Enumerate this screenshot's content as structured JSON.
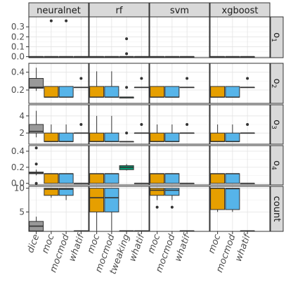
{
  "chart_data": {
    "type": "box",
    "grid": true,
    "legend": "none",
    "models": [
      "neuralnet",
      "rf",
      "svm",
      "xgboost"
    ],
    "methods": {
      "neuralnet": [
        "dice",
        "moc",
        "mocmod",
        "whatif"
      ],
      "rf": [
        "moc",
        "mocmod",
        "tweaking",
        "whatif"
      ],
      "svm": [
        "moc",
        "mocmod",
        "whatif"
      ],
      "xgboost": [
        "moc",
        "mocmod",
        "whatif"
      ]
    },
    "method_colors": {
      "dice": "#999999",
      "moc": "#E69F00",
      "mocmod": "#56B4E9",
      "tweaking": "#009E73",
      "whatif": "#F0E442"
    },
    "rows": [
      {
        "key": "o1",
        "label": "o",
        "sub": "1",
        "ylim": [
          -0.01,
          0.4
        ],
        "ticks": [
          0.0,
          0.1,
          0.2,
          0.3
        ],
        "tick_labels": [
          "0.0",
          "0.1",
          "0.2",
          "0.3"
        ]
      },
      {
        "key": "o2",
        "label": "o",
        "sub": "2",
        "ylim": [
          0.05,
          0.5
        ],
        "ticks": [
          0.2,
          0.4
        ],
        "tick_labels": [
          "0.2",
          "0.4"
        ]
      },
      {
        "key": "o3",
        "label": "o",
        "sub": "3",
        "ylim": [
          0.7,
          5.3
        ],
        "ticks": [
          2,
          4
        ],
        "tick_labels": [
          "2",
          "4"
        ]
      },
      {
        "key": "o4",
        "label": "o",
        "sub": "4",
        "ylim": [
          -0.02,
          0.47
        ],
        "ticks": [
          0.0,
          0.2,
          0.4
        ],
        "tick_labels": [
          "0.0",
          "0.2",
          "0.4"
        ]
      },
      {
        "key": "count",
        "label": "count",
        "sub": "",
        "ylim": [
          0.9,
          10.4
        ],
        "ticks": [
          5,
          10
        ],
        "tick_labels": [
          "5",
          "10"
        ]
      }
    ],
    "boxes": {
      "neuralnet": {
        "o1": {
          "dice": {
            "min": 0.0,
            "q1": 0.0,
            "median": 0.0,
            "q3": 0.0,
            "max": 0.0,
            "outliers": []
          },
          "moc": {
            "min": 0.0,
            "q1": 0.0,
            "median": 0.0,
            "q3": 0.0,
            "max": 0.0,
            "outliers": [
              0.36
            ]
          },
          "mocmod": {
            "min": 0.0,
            "q1": 0.0,
            "median": 0.0,
            "q3": 0.0,
            "max": 0.0,
            "outliers": [
              0.36
            ]
          },
          "whatif": {
            "min": 0.0,
            "q1": 0.0,
            "median": 0.0,
            "q3": 0.0,
            "max": 0.0,
            "outliers": []
          }
        },
        "o2": {
          "dice": {
            "min": 0.19,
            "q1": 0.22,
            "median": 0.23,
            "q3": 0.33,
            "max": 0.45,
            "outliers": []
          },
          "moc": {
            "min": 0.12,
            "q1": 0.12,
            "median": 0.12,
            "q3": 0.24,
            "max": 0.24,
            "outliers": []
          },
          "mocmod": {
            "min": 0.12,
            "q1": 0.12,
            "median": 0.12,
            "q3": 0.24,
            "max": 0.24,
            "outliers": []
          },
          "whatif": {
            "min": 0.23,
            "q1": 0.23,
            "median": 0.23,
            "q3": 0.23,
            "max": 0.23,
            "outliers": [
              0.33
            ]
          }
        },
        "o3": {
          "dice": {
            "min": 1.5,
            "q1": 2.0,
            "median": 2.2,
            "q3": 3.0,
            "max": 4.6,
            "outliers": []
          },
          "moc": {
            "min": 1.0,
            "q1": 1.0,
            "median": 1.0,
            "q3": 2.0,
            "max": 3.0,
            "outliers": []
          },
          "mocmod": {
            "min": 1.0,
            "q1": 1.0,
            "median": 1.0,
            "q3": 2.0,
            "max": 3.0,
            "outliers": []
          },
          "whatif": {
            "min": 2.0,
            "q1": 2.0,
            "median": 2.0,
            "q3": 2.0,
            "max": 2.0,
            "outliers": [
              3.0
            ]
          }
        },
        "o4": {
          "dice": {
            "min": 0.1,
            "q1": 0.12,
            "median": 0.13,
            "q3": 0.14,
            "max": 0.17,
            "outliers": [
              0.44,
              0.24,
              0.0
            ]
          },
          "moc": {
            "min": 0.0,
            "q1": 0.0,
            "median": 0.12,
            "q3": 0.12,
            "max": 0.12,
            "outliers": []
          },
          "mocmod": {
            "min": 0.0,
            "q1": 0.0,
            "median": 0.12,
            "q3": 0.12,
            "max": 0.12,
            "outliers": []
          },
          "whatif": {
            "min": 0.0,
            "q1": 0.0,
            "median": 0.0,
            "q3": 0.0,
            "max": 0.0,
            "outliers": []
          }
        },
        "count": {
          "dice": {
            "min": 1.0,
            "q1": 1.0,
            "median": 2.0,
            "q3": 3.0,
            "max": 4.0,
            "outliers": []
          },
          "moc": {
            "min": 8.0,
            "q1": 8.5,
            "median": 9.8,
            "q3": 10.0,
            "max": 10.0,
            "outliers": []
          },
          "mocmod": {
            "min": 7.5,
            "q1": 8.5,
            "median": 9.8,
            "q3": 10.0,
            "max": 10.0,
            "outliers": []
          },
          "whatif": {
            "min": 1.0,
            "q1": 1.0,
            "median": 1.0,
            "q3": 1.0,
            "max": 1.0,
            "outliers": []
          }
        }
      },
      "rf": {
        "o1": {
          "moc": {
            "min": 0.0,
            "q1": 0.0,
            "median": 0.0,
            "q3": 0.0,
            "max": 0.0,
            "outliers": []
          },
          "mocmod": {
            "min": 0.0,
            "q1": 0.0,
            "median": 0.0,
            "q3": 0.0,
            "max": 0.0,
            "outliers": []
          },
          "tweaking": {
            "min": 0.0,
            "q1": 0.0,
            "median": 0.0,
            "q3": 0.0,
            "max": 0.0,
            "outliers": [
              0.18,
              0.03
            ]
          },
          "whatif": {
            "min": 0.0,
            "q1": 0.0,
            "median": 0.0,
            "q3": 0.0,
            "max": 0.0,
            "outliers": []
          }
        },
        "o2": {
          "moc": {
            "min": 0.12,
            "q1": 0.12,
            "median": 0.12,
            "q3": 0.24,
            "max": 0.41,
            "outliers": []
          },
          "mocmod": {
            "min": 0.12,
            "q1": 0.12,
            "median": 0.12,
            "q3": 0.24,
            "max": 0.41,
            "outliers": []
          },
          "tweaking": {
            "min": 0.11,
            "q1": 0.11,
            "median": 0.12,
            "q3": 0.12,
            "max": 0.12,
            "outliers": [
              0.23
            ]
          },
          "whatif": {
            "min": 0.23,
            "q1": 0.23,
            "median": 0.23,
            "q3": 0.23,
            "max": 0.23,
            "outliers": [
              0.33
            ]
          }
        },
        "o3": {
          "moc": {
            "min": 1.0,
            "q1": 1.0,
            "median": 1.0,
            "q3": 2.0,
            "max": 4.0,
            "outliers": []
          },
          "mocmod": {
            "min": 1.0,
            "q1": 1.0,
            "median": 1.0,
            "q3": 2.0,
            "max": 4.0,
            "outliers": []
          },
          "tweaking": {
            "min": 1.0,
            "q1": 1.0,
            "median": 1.0,
            "q3": 1.0,
            "max": 1.0,
            "outliers": [
              2.0
            ]
          },
          "whatif": {
            "min": 2.0,
            "q1": 2.0,
            "median": 2.0,
            "q3": 2.0,
            "max": 2.0,
            "outliers": [
              3.0
            ]
          }
        },
        "o4": {
          "moc": {
            "min": 0.0,
            "q1": 0.0,
            "median": 0.12,
            "q3": 0.12,
            "max": 0.12,
            "outliers": []
          },
          "mocmod": {
            "min": 0.0,
            "q1": 0.0,
            "median": 0.12,
            "q3": 0.12,
            "max": 0.12,
            "outliers": []
          },
          "tweaking": {
            "min": 0.16,
            "q1": 0.17,
            "median": 0.2,
            "q3": 0.22,
            "max": 0.24,
            "outliers": []
          },
          "whatif": {
            "min": 0.0,
            "q1": 0.0,
            "median": 0.0,
            "q3": 0.0,
            "max": 0.0,
            "outliers": []
          }
        },
        "count": {
          "moc": {
            "min": 1.0,
            "q1": 5.0,
            "median": 8.0,
            "q3": 10.0,
            "max": 10.0,
            "outliers": []
          },
          "mocmod": {
            "min": 1.0,
            "q1": 5.0,
            "median": 8.0,
            "q3": 10.0,
            "max": 10.0,
            "outliers": []
          },
          "tweaking": {
            "min": 1.0,
            "q1": 1.0,
            "median": 1.0,
            "q3": 1.0,
            "max": 1.0,
            "outliers": []
          },
          "whatif": {
            "min": 1.0,
            "q1": 1.0,
            "median": 1.0,
            "q3": 1.0,
            "max": 1.0,
            "outliers": []
          }
        }
      },
      "svm": {
        "o1": {
          "moc": {
            "min": 0.0,
            "q1": 0.0,
            "median": 0.0,
            "q3": 0.0,
            "max": 0.0,
            "outliers": []
          },
          "mocmod": {
            "min": 0.0,
            "q1": 0.0,
            "median": 0.0,
            "q3": 0.0,
            "max": 0.0,
            "outliers": []
          },
          "whatif": {
            "min": 0.0,
            "q1": 0.0,
            "median": 0.0,
            "q3": 0.0,
            "max": 0.0,
            "outliers": []
          }
        },
        "o2": {
          "moc": {
            "min": 0.12,
            "q1": 0.12,
            "median": 0.12,
            "q3": 0.24,
            "max": 0.24,
            "outliers": []
          },
          "mocmod": {
            "min": 0.12,
            "q1": 0.12,
            "median": 0.12,
            "q3": 0.24,
            "max": 0.24,
            "outliers": []
          },
          "whatif": {
            "min": 0.23,
            "q1": 0.23,
            "median": 0.23,
            "q3": 0.23,
            "max": 0.23,
            "outliers": [
              0.33
            ]
          }
        },
        "o3": {
          "moc": {
            "min": 1.0,
            "q1": 1.0,
            "median": 1.0,
            "q3": 2.0,
            "max": 3.0,
            "outliers": []
          },
          "mocmod": {
            "min": 1.0,
            "q1": 1.0,
            "median": 1.0,
            "q3": 2.0,
            "max": 3.0,
            "outliers": []
          },
          "whatif": {
            "min": 2.0,
            "q1": 2.0,
            "median": 2.0,
            "q3": 2.0,
            "max": 2.0,
            "outliers": [
              3.0
            ]
          }
        },
        "o4": {
          "moc": {
            "min": 0.0,
            "q1": 0.0,
            "median": 0.12,
            "q3": 0.12,
            "max": 0.12,
            "outliers": []
          },
          "mocmod": {
            "min": 0.0,
            "q1": 0.0,
            "median": 0.12,
            "q3": 0.12,
            "max": 0.12,
            "outliers": []
          },
          "whatif": {
            "min": 0.0,
            "q1": 0.0,
            "median": 0.0,
            "q3": 0.0,
            "max": 0.0,
            "outliers": []
          }
        },
        "count": {
          "moc": {
            "min": 7.5,
            "q1": 8.5,
            "median": 9.6,
            "q3": 10.0,
            "max": 10.0,
            "outliers": [
              6.0
            ]
          },
          "mocmod": {
            "min": 7.5,
            "q1": 8.5,
            "median": 9.6,
            "q3": 10.0,
            "max": 10.0,
            "outliers": [
              6.0
            ]
          },
          "whatif": {
            "min": 1.0,
            "q1": 1.0,
            "median": 1.0,
            "q3": 1.0,
            "max": 1.0,
            "outliers": []
          }
        }
      },
      "xgboost": {
        "o1": {
          "moc": {
            "min": 0.0,
            "q1": 0.0,
            "median": 0.0,
            "q3": 0.0,
            "max": 0.0,
            "outliers": []
          },
          "mocmod": {
            "min": 0.0,
            "q1": 0.0,
            "median": 0.0,
            "q3": 0.0,
            "max": 0.0,
            "outliers": []
          },
          "whatif": {
            "min": 0.0,
            "q1": 0.0,
            "median": 0.0,
            "q3": 0.0,
            "max": 0.0,
            "outliers": []
          }
        },
        "o2": {
          "moc": {
            "min": 0.12,
            "q1": 0.12,
            "median": 0.12,
            "q3": 0.24,
            "max": 0.24,
            "outliers": []
          },
          "mocmod": {
            "min": 0.12,
            "q1": 0.12,
            "median": 0.12,
            "q3": 0.24,
            "max": 0.24,
            "outliers": []
          },
          "whatif": {
            "min": 0.23,
            "q1": 0.23,
            "median": 0.23,
            "q3": 0.23,
            "max": 0.23,
            "outliers": [
              0.33
            ]
          }
        },
        "o3": {
          "moc": {
            "min": 1.0,
            "q1": 1.0,
            "median": 1.0,
            "q3": 2.0,
            "max": 3.0,
            "outliers": []
          },
          "mocmod": {
            "min": 1.0,
            "q1": 1.0,
            "median": 1.0,
            "q3": 2.0,
            "max": 3.0,
            "outliers": []
          },
          "whatif": {
            "min": 2.0,
            "q1": 2.0,
            "median": 2.0,
            "q3": 2.0,
            "max": 2.0,
            "outliers": [
              3.0
            ]
          }
        },
        "o4": {
          "moc": {
            "min": 0.0,
            "q1": 0.0,
            "median": 0.12,
            "q3": 0.12,
            "max": 0.12,
            "outliers": []
          },
          "mocmod": {
            "min": 0.0,
            "q1": 0.0,
            "median": 0.12,
            "q3": 0.12,
            "max": 0.12,
            "outliers": []
          },
          "whatif": {
            "min": 0.0,
            "q1": 0.0,
            "median": 0.0,
            "q3": 0.0,
            "max": 0.0,
            "outliers": []
          }
        },
        "count": {
          "moc": {
            "min": 5.0,
            "q1": 5.5,
            "median": 10.0,
            "q3": 10.0,
            "max": 10.0,
            "outliers": []
          },
          "mocmod": {
            "min": 5.0,
            "q1": 5.5,
            "median": 9.9,
            "q3": 10.0,
            "max": 10.0,
            "outliers": []
          },
          "whatif": {
            "min": 1.0,
            "q1": 1.0,
            "median": 1.0,
            "q3": 1.0,
            "max": 1.0,
            "outliers": []
          }
        }
      }
    }
  }
}
